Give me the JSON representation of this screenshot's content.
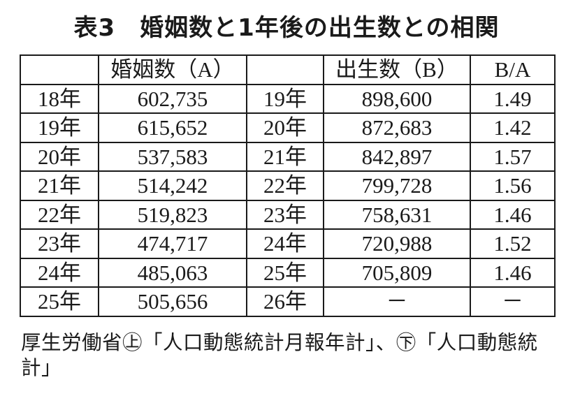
{
  "header": {
    "title": "表3　婚姻数と1年後の出生数との相関"
  },
  "table": {
    "header": {
      "marriages": "婚姻数（A）",
      "births": "出生数（B）",
      "ratio": "B/A"
    },
    "rows": [
      [
        "18年",
        "602,735",
        "19年",
        "898,600",
        "1.49"
      ],
      [
        "19年",
        "615,652",
        "20年",
        "872,683",
        "1.42"
      ],
      [
        "20年",
        "537,583",
        "21年",
        "842,897",
        "1.57"
      ],
      [
        "21年",
        "514,242",
        "22年",
        "799,728",
        "1.56"
      ],
      [
        "22年",
        "519,823",
        "23年",
        "758,631",
        "1.46"
      ],
      [
        "23年",
        "474,717",
        "24年",
        "720,988",
        "1.52"
      ],
      [
        "24年",
        "485,063",
        "25年",
        "705,809",
        "1.46"
      ],
      [
        "25年",
        "505,656",
        "26年",
        "－",
        "－"
      ]
    ]
  },
  "source": "厚生労働省㊤「人口動態統計月報年計」、㊦「人口動態統計」"
}
